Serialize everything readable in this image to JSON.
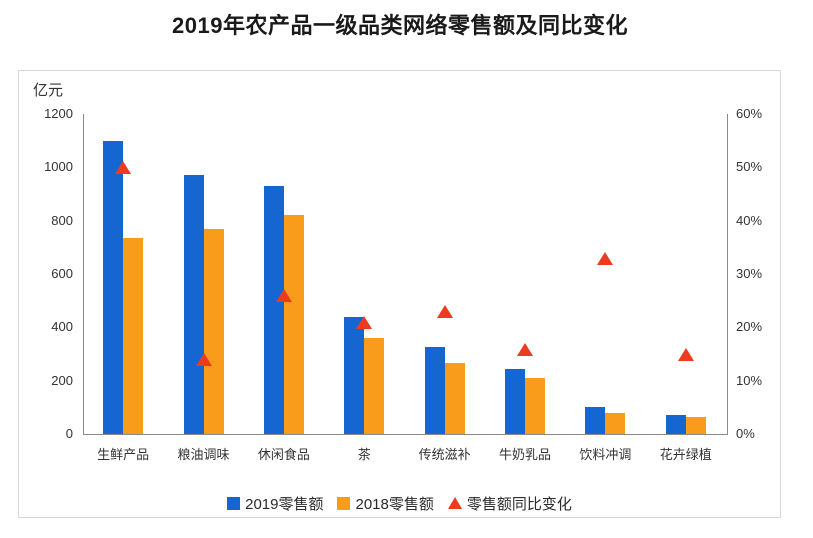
{
  "page": {
    "title": "2019年农产品一级品类网络零售额及同比变化"
  },
  "chart_data": {
    "type": "bar",
    "title": "2019年农产品一级品类网络零售额及同比变化",
    "categories": [
      "生鲜产品",
      "粮油调味",
      "休闲食品",
      "茶",
      "传统滋补",
      "牛奶乳品",
      "饮料冲调",
      "花卉绿植"
    ],
    "series": [
      {
        "key": "2019",
        "name": "2019零售额",
        "type": "bar",
        "axis": "left",
        "color": "#1566D0",
        "values": [
          1100,
          970,
          930,
          440,
          325,
          245,
          100,
          70
        ]
      },
      {
        "key": "2018",
        "name": "2018零售额",
        "type": "bar",
        "axis": "left",
        "color": "#F99C1C",
        "values": [
          735,
          770,
          820,
          360,
          265,
          210,
          78,
          62
        ]
      },
      {
        "key": "yoy",
        "name": "零售额同比变化",
        "type": "triangle-scatter",
        "axis": "right",
        "color": "#EC3B1E",
        "values": [
          50,
          14,
          26,
          21,
          23,
          16,
          33,
          15
        ]
      }
    ],
    "left_axis": {
      "unit": "亿元",
      "min": 0,
      "max": 1200,
      "step": 200,
      "ticks": [
        "0",
        "200",
        "400",
        "600",
        "800",
        "1000",
        "1200"
      ]
    },
    "right_axis": {
      "min": 0,
      "max": 60,
      "step": 10,
      "ticks": [
        "0%",
        "10%",
        "20%",
        "30%",
        "40%",
        "50%",
        "60%"
      ]
    },
    "grid": false,
    "legend_position": "bottom"
  }
}
